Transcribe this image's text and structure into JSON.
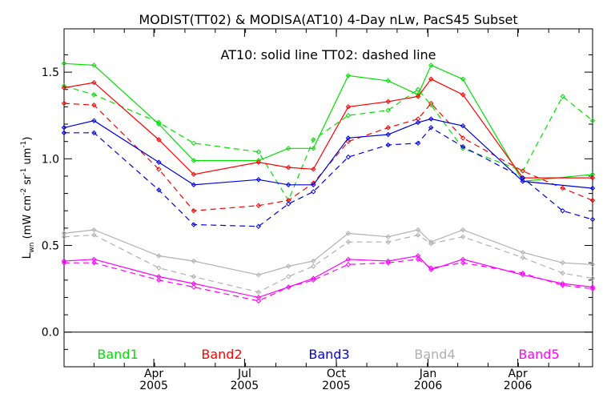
{
  "chart_data": {
    "type": "line",
    "title": "MODIST(TT02) & MODISA(AT10) 4-Day nLw, PacS45 Subset",
    "annotation": "AT10: solid line    TT02: dashed line",
    "ylabel": "L_wn (mW cm^-2 sr^-1 um^-1)",
    "ylabel_parts": {
      "prefix": "(mW cm",
      "exp1": "-2",
      "mid": " sr",
      "exp2": "-1",
      "mid2": " um",
      "exp3": "-1",
      "suffix": ")",
      "symbol": "L",
      "symbol_sub": "wn"
    },
    "ylim": [
      -0.2,
      1.75
    ],
    "y_ticks": [
      0.0,
      0.5,
      1.0,
      1.5
    ],
    "y_tick_labels": [
      "0.0",
      "0.5",
      "1.0",
      "1.5"
    ],
    "zero_line": true,
    "grid": false,
    "x_unit": "days since 2004-12-31",
    "xlim": [
      0,
      530
    ],
    "x_ticks": [
      {
        "x": 90,
        "month": "Apr",
        "year": "2005"
      },
      {
        "x": 181,
        "month": "Jul",
        "year": "2005"
      },
      {
        "x": 273,
        "month": "Oct",
        "year": "2005"
      },
      {
        "x": 365,
        "month": "Jan",
        "year": "2006"
      },
      {
        "x": 455,
        "month": "Apr",
        "year": "2006"
      }
    ],
    "series": [
      {
        "name": "Band1",
        "color": "#00e000",
        "style": "solid",
        "x": [
          0,
          30,
          95,
          130,
          195,
          225,
          250,
          285,
          325,
          355,
          368,
          400,
          460,
          530
        ],
        "y": [
          1.55,
          1.54,
          1.2,
          0.99,
          0.99,
          1.06,
          1.06,
          1.48,
          1.45,
          1.37,
          1.54,
          1.46,
          0.87,
          0.91
        ]
      },
      {
        "name": "Band1",
        "color": "#00e000",
        "style": "dashed",
        "x": [
          0,
          30,
          95,
          130,
          195,
          225,
          250,
          285,
          325,
          355,
          368,
          400,
          460,
          500,
          530
        ],
        "y": [
          1.42,
          1.37,
          1.21,
          1.09,
          1.04,
          0.76,
          1.11,
          1.25,
          1.28,
          1.4,
          1.31,
          1.06,
          0.93,
          1.36,
          1.22
        ]
      },
      {
        "name": "Band2",
        "color": "#ff0000",
        "style": "solid",
        "x": [
          0,
          30,
          95,
          130,
          195,
          225,
          250,
          285,
          325,
          355,
          368,
          400,
          460,
          530
        ],
        "y": [
          1.41,
          1.44,
          1.11,
          0.91,
          0.98,
          0.95,
          0.94,
          1.3,
          1.33,
          1.36,
          1.46,
          1.37,
          0.89,
          0.89
        ]
      },
      {
        "name": "Band2",
        "color": "#ff0000",
        "style": "dashed",
        "x": [
          0,
          30,
          95,
          130,
          195,
          225,
          250,
          285,
          325,
          355,
          368,
          400,
          460,
          500,
          530
        ],
        "y": [
          1.32,
          1.31,
          0.94,
          0.7,
          0.73,
          0.76,
          0.86,
          1.1,
          1.18,
          1.23,
          1.32,
          1.12,
          0.93,
          0.83,
          0.76
        ]
      },
      {
        "name": "Band3",
        "color": "#0000e0",
        "style": "solid",
        "x": [
          0,
          30,
          95,
          130,
          195,
          225,
          250,
          285,
          325,
          355,
          368,
          400,
          460,
          530
        ],
        "y": [
          1.18,
          1.22,
          0.98,
          0.85,
          0.88,
          0.85,
          0.85,
          1.12,
          1.14,
          1.21,
          1.23,
          1.19,
          0.87,
          0.83
        ]
      },
      {
        "name": "Band3",
        "color": "#0000e0",
        "style": "dashed",
        "x": [
          0,
          30,
          95,
          130,
          195,
          225,
          250,
          285,
          325,
          355,
          368,
          400,
          460,
          500,
          530
        ],
        "y": [
          1.15,
          1.15,
          0.82,
          0.62,
          0.61,
          0.74,
          0.81,
          1.01,
          1.08,
          1.09,
          1.18,
          1.07,
          0.89,
          0.7,
          0.65
        ]
      },
      {
        "name": "Band4",
        "color": "#b0b0b0",
        "style": "solid",
        "x": [
          0,
          30,
          95,
          130,
          195,
          225,
          250,
          285,
          325,
          355,
          368,
          400,
          460,
          500,
          530
        ],
        "y": [
          0.57,
          0.59,
          0.44,
          0.41,
          0.33,
          0.38,
          0.41,
          0.57,
          0.55,
          0.59,
          0.52,
          0.59,
          0.46,
          0.4,
          0.39
        ]
      },
      {
        "name": "Band4",
        "color": "#b0b0b0",
        "style": "dashed",
        "x": [
          0,
          30,
          95,
          130,
          195,
          225,
          250,
          285,
          325,
          355,
          368,
          400,
          460,
          500,
          530
        ],
        "y": [
          0.55,
          0.56,
          0.37,
          0.32,
          0.23,
          0.32,
          0.38,
          0.52,
          0.52,
          0.56,
          0.51,
          0.55,
          0.43,
          0.34,
          0.31
        ]
      },
      {
        "name": "Band5",
        "color": "#ff00ff",
        "style": "solid",
        "x": [
          0,
          30,
          95,
          130,
          195,
          225,
          250,
          285,
          325,
          355,
          368,
          400,
          460,
          500,
          530
        ],
        "y": [
          0.41,
          0.42,
          0.32,
          0.28,
          0.2,
          0.26,
          0.31,
          0.42,
          0.41,
          0.44,
          0.36,
          0.42,
          0.33,
          0.28,
          0.26
        ]
      },
      {
        "name": "Band5",
        "color": "#ff00ff",
        "style": "dashed",
        "x": [
          0,
          30,
          95,
          130,
          195,
          225,
          250,
          285,
          325,
          355,
          368,
          400,
          460,
          500,
          530
        ],
        "y": [
          0.4,
          0.4,
          0.3,
          0.26,
          0.18,
          0.26,
          0.3,
          0.39,
          0.4,
          0.42,
          0.37,
          0.4,
          0.34,
          0.27,
          0.25
        ]
      }
    ],
    "legend": [
      {
        "label": "Band1",
        "color": "#00e000"
      },
      {
        "label": "Band2",
        "color": "#ff0000"
      },
      {
        "label": "Band3",
        "color": "#0000e0"
      },
      {
        "label": "Band4",
        "color": "#b0b0b0"
      },
      {
        "label": "Band5",
        "color": "#ff00ff"
      }
    ],
    "legend_placement": "bottom-inside"
  }
}
